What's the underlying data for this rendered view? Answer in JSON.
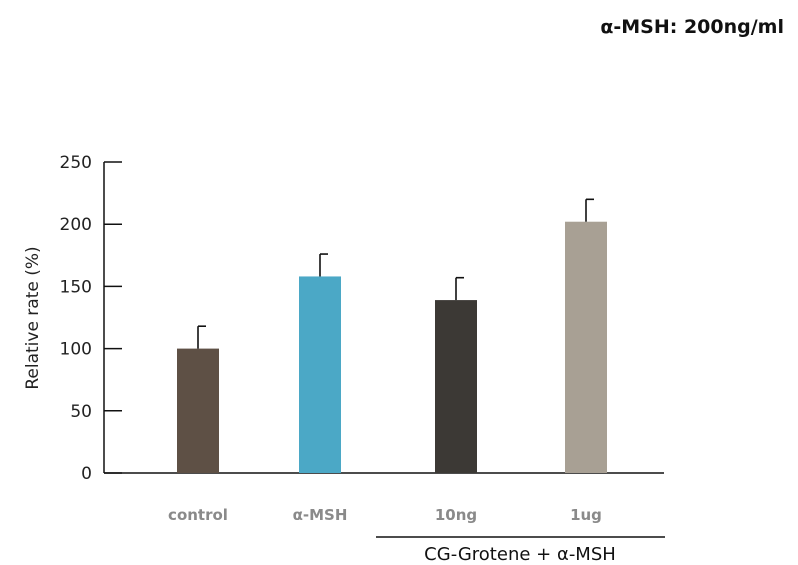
{
  "condition_note": "α-MSH: 200ng/ml",
  "chart_data": {
    "type": "bar",
    "title": "",
    "xlabel": "",
    "ylabel": "Relative rate (%)",
    "ylim": [
      0,
      250
    ],
    "yticks": [
      0,
      50,
      100,
      150,
      200,
      250
    ],
    "categories": [
      "control",
      "α-MSH",
      "10ng",
      "1ug"
    ],
    "values": [
      100,
      158,
      139,
      202
    ],
    "errors": [
      18,
      18,
      18,
      18
    ],
    "colors": [
      "#5e5045",
      "#4ba8c6",
      "#3c3935",
      "#a8a094"
    ],
    "group_label": "CG-Grotene + α-MSH",
    "group_categories": [
      "10ng",
      "1ug"
    ],
    "grid": false,
    "legend": "none"
  }
}
